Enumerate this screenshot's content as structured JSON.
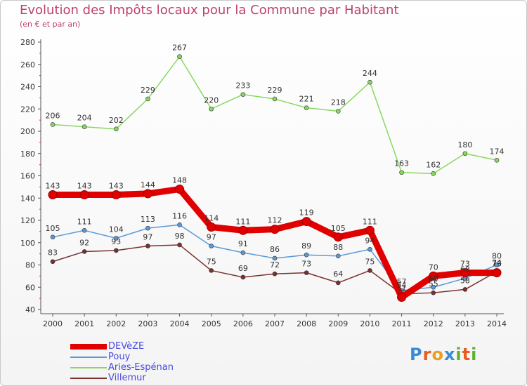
{
  "header": {
    "title": "Evolution des Impôts locaux pour la Commune par Habitant",
    "subtitle": "(en € et par an)"
  },
  "logo": {
    "text": "Proxiti",
    "letters": [
      "P",
      "r",
      "o",
      "x",
      "i",
      "t",
      "i"
    ],
    "colors": [
      "#3a8ad8",
      "#e85c20",
      "#e8a020",
      "#3a8ad8",
      "#60b030",
      "#e85c20",
      "#60b030"
    ]
  },
  "chart_data": {
    "type": "line",
    "categories": [
      "2000",
      "2001",
      "2002",
      "2003",
      "2004",
      "2005",
      "2006",
      "2007",
      "2008",
      "2009",
      "2010",
      "2011",
      "2012",
      "2013",
      "2014"
    ],
    "ylim": [
      40,
      280
    ],
    "yticks": [
      40,
      60,
      80,
      100,
      120,
      140,
      160,
      180,
      200,
      220,
      240,
      260,
      280
    ],
    "grid": false,
    "legend_position": "bottom-left",
    "series": [
      {
        "name": "DEVèZE",
        "color": "#e00000",
        "emphasis": true,
        "values": [
          143,
          143,
          143,
          144,
          148,
          114,
          111,
          112,
          119,
          105,
          111,
          51,
          70,
          73,
          73
        ],
        "labels": [
          "143",
          "143",
          "143",
          "144",
          "148",
          "114",
          "111",
          "112",
          "119",
          "105",
          "111",
          "51",
          "70",
          "73",
          "73"
        ]
      },
      {
        "name": "Pouy",
        "color": "#5a9ad8",
        "emphasis": false,
        "values": [
          105,
          111,
          104,
          113,
          116,
          97,
          91,
          86,
          89,
          88,
          94,
          57,
          60,
          68,
          80
        ],
        "labels": [
          "105",
          "111",
          "104",
          "113",
          "116",
          "97",
          "91",
          "86",
          "89",
          "88",
          "94",
          "57",
          "60",
          "68",
          "80"
        ]
      },
      {
        "name": "Aries-Espénan",
        "color": "#88d860",
        "emphasis": false,
        "values": [
          206,
          204,
          202,
          229,
          267,
          220,
          233,
          229,
          221,
          218,
          244,
          163,
          162,
          180,
          174
        ],
        "labels": [
          "206",
          "204",
          "202",
          "229",
          "267",
          "220",
          "233",
          "229",
          "221",
          "218",
          "244",
          "163",
          "162",
          "180",
          "174"
        ]
      },
      {
        "name": "Villemur",
        "color": "#7a3030",
        "emphasis": false,
        "values": [
          83,
          92,
          93,
          97,
          98,
          75,
          69,
          72,
          73,
          64,
          75,
          54,
          55,
          58,
          74
        ],
        "labels": [
          "83",
          "92",
          "93",
          "97",
          "98",
          "75",
          "69",
          "72",
          "73",
          "64",
          "75",
          "54",
          "55",
          "58",
          "74"
        ]
      }
    ]
  }
}
